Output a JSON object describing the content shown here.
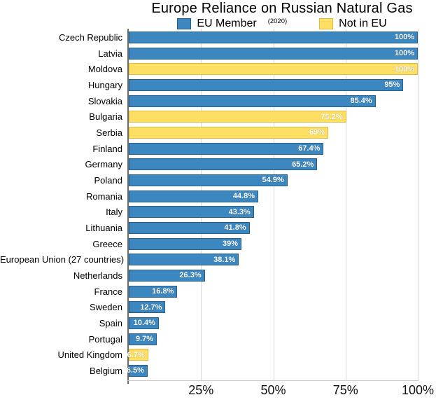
{
  "chart_data": {
    "type": "bar",
    "orientation": "horizontal",
    "title": "Europe Reliance on Russian Natural Gas",
    "note": "(2020)",
    "legend": [
      {
        "label": "EU Member",
        "color": "#3d87c0"
      },
      {
        "label": "Not in EU",
        "color": "#fcdf63"
      }
    ],
    "xlim": [
      0,
      100
    ],
    "grid": "vertical",
    "legend_position": "top",
    "x_ticks": [
      {
        "value": 25,
        "label": "25%"
      },
      {
        "value": 50,
        "label": "50%"
      },
      {
        "value": 75,
        "label": "75%"
      },
      {
        "value": 100,
        "label": "100%"
      }
    ],
    "colors": {
      "eu": {
        "fill": "#3d87c0",
        "border": "#255f8a"
      },
      "non_eu": {
        "fill": "#fcdf63",
        "border": "#e0ba45"
      },
      "gridline": "#d9d9d9",
      "spine": "#6b6b6b"
    },
    "rows": [
      {
        "country": "Czech Republic",
        "value": 100,
        "label": "100%",
        "group": "EU Member"
      },
      {
        "country": "Latvia",
        "value": 100,
        "label": "100%",
        "group": "EU Member"
      },
      {
        "country": "Moldova",
        "value": 100,
        "label": "100%",
        "group": "Not in EU"
      },
      {
        "country": "Hungary",
        "value": 95,
        "label": "95%",
        "group": "EU Member"
      },
      {
        "country": "Slovakia",
        "value": 85.4,
        "label": "85.4%",
        "group": "EU Member"
      },
      {
        "country": "Bulgaria",
        "value": 75.2,
        "label": "75.2%",
        "group": "Not in EU"
      },
      {
        "country": "Serbia",
        "value": 69,
        "label": "69%",
        "group": "Not in EU"
      },
      {
        "country": "Finland",
        "value": 67.4,
        "label": "67.4%",
        "group": "EU Member"
      },
      {
        "country": "Germany",
        "value": 65.2,
        "label": "65.2%",
        "group": "EU Member"
      },
      {
        "country": "Poland",
        "value": 54.9,
        "label": "54.9%",
        "group": "EU Member"
      },
      {
        "country": "Romania",
        "value": 44.8,
        "label": "44.8%",
        "group": "EU Member"
      },
      {
        "country": "Italy",
        "value": 43.3,
        "label": "43.3%",
        "group": "EU Member"
      },
      {
        "country": "Lithuania",
        "value": 41.8,
        "label": "41.8%",
        "group": "EU Member"
      },
      {
        "country": "Greece",
        "value": 39,
        "label": "39%",
        "group": "EU Member"
      },
      {
        "country": "European Union (27 countries)",
        "value": 38.1,
        "label": "38.1%",
        "group": "EU Member"
      },
      {
        "country": "Netherlands",
        "value": 26.3,
        "label": "26.3%",
        "group": "EU Member"
      },
      {
        "country": "France",
        "value": 16.8,
        "label": "16.8%",
        "group": "EU Member"
      },
      {
        "country": "Sweden",
        "value": 12.7,
        "label": "12.7%",
        "group": "EU Member"
      },
      {
        "country": "Spain",
        "value": 10.4,
        "label": "10.4%",
        "group": "EU Member"
      },
      {
        "country": "Portugal",
        "value": 9.7,
        "label": "9.7%",
        "group": "EU Member"
      },
      {
        "country": "United Kingdom",
        "value": 6.7,
        "label": "6.7%",
        "group": "Not in EU"
      },
      {
        "country": "Belgium",
        "value": 6.5,
        "label": "6.5%",
        "group": "EU Member"
      }
    ]
  }
}
